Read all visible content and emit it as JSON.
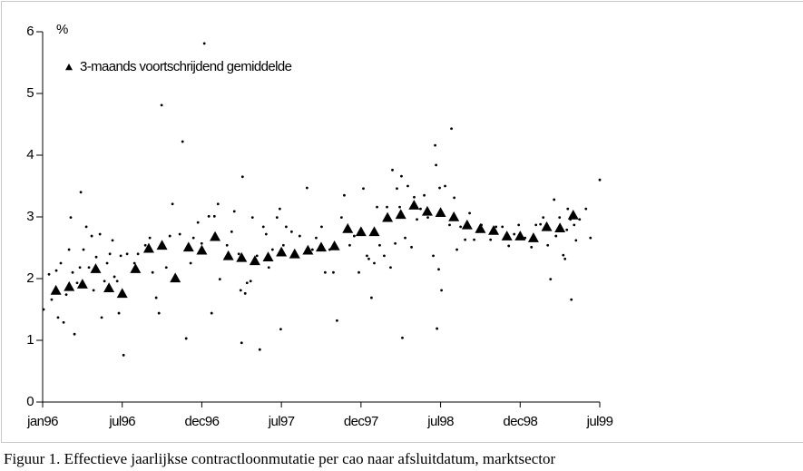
{
  "chart_data": {
    "type": "scatter",
    "y_label": "%",
    "caption": "Figuur 1. Effectieve jaarlijkse contractloonmutatie per cao naar afsluitdatum, marktsector",
    "xlim": [
      0,
      42
    ],
    "ylim": [
      0,
      6
    ],
    "xticks": [
      {
        "value": 0,
        "label": "jan96"
      },
      {
        "value": 6,
        "label": "jul96"
      },
      {
        "value": 12,
        "label": "dec96"
      },
      {
        "value": 18,
        "label": "jul97"
      },
      {
        "value": 24,
        "label": "dec97"
      },
      {
        "value": 30,
        "label": "jul98"
      },
      {
        "value": 36,
        "label": "dec98"
      },
      {
        "value": 42,
        "label": "jul99"
      }
    ],
    "yticks": [
      0,
      1,
      2,
      3,
      4,
      5,
      6
    ],
    "grid": false,
    "legend": "top-left",
    "series": [
      {
        "marker": "dot",
        "color": "#000000",
        "x": [
          0.07,
          0.48,
          0.68,
          1.03,
          1.16,
          1.37,
          1.58,
          1.78,
          1.99,
          2.12,
          2.26,
          2.4,
          2.6,
          2.81,
          2.88,
          3.08,
          3.29,
          3.49,
          3.7,
          3.84,
          4.04,
          4.32,
          4.45,
          4.66,
          4.86,
          5.07,
          5.27,
          5.41,
          5.62,
          5.75,
          5.89,
          6.1,
          6.37,
          6.92,
          7.19,
          7.74,
          8.08,
          8.29,
          8.56,
          8.77,
          8.97,
          9.32,
          9.59,
          9.79,
          10.34,
          10.55,
          10.82,
          11.16,
          11.37,
          11.71,
          11.99,
          12.19,
          12.53,
          12.74,
          12.95,
          13.22,
          13.36,
          13.9,
          14.25,
          14.45,
          14.79,
          14.93,
          15.0,
          15.07,
          15.27,
          15.41,
          15.68,
          15.82,
          16.16,
          16.37,
          16.64,
          16.85,
          17.05,
          17.33,
          17.67,
          17.88,
          17.95,
          18.15,
          18.36,
          18.77,
          19.38,
          19.93,
          20.34,
          20.62,
          21.03,
          21.3,
          21.64,
          21.92,
          22.19,
          22.53,
          22.74,
          23.15,
          23.49,
          23.84,
          24.18,
          24.45,
          24.59,
          24.79,
          25.0,
          25.21,
          25.41,
          25.75,
          25.96,
          26.23,
          26.37,
          26.58,
          26.71,
          26.92,
          27.05,
          27.12,
          27.33,
          27.53,
          27.81,
          28.01,
          28.22,
          28.49,
          28.77,
          29.04,
          29.45,
          29.59,
          29.66,
          29.73,
          29.86,
          29.93,
          30.07,
          30.34,
          30.68,
          30.82,
          31.03,
          31.23,
          31.51,
          31.85,
          32.19,
          32.53,
          32.81,
          33.08,
          33.77,
          34.18,
          34.66,
          35.14,
          35.55,
          35.89,
          36.37,
          36.85,
          37.19,
          37.53,
          37.74,
          38.08,
          38.29,
          38.56,
          38.7,
          38.97,
          39.25,
          39.38,
          39.52,
          39.59,
          39.79,
          39.86,
          40.07,
          40.21,
          40.48,
          40.96,
          41.3,
          42.0
        ],
        "values": [
          1.5,
          2.07,
          1.66,
          2.13,
          1.37,
          2.25,
          1.29,
          1.74,
          2.47,
          2.99,
          2.1,
          1.1,
          1.93,
          2.18,
          3.4,
          2.47,
          2.84,
          2.18,
          2.69,
          1.81,
          2.35,
          2.72,
          1.37,
          1.96,
          2.25,
          2.4,
          2.62,
          2.03,
          1.96,
          1.44,
          2.37,
          0.76,
          2.4,
          2.25,
          2.4,
          2.54,
          2.66,
          2.1,
          1.69,
          1.44,
          4.81,
          2.18,
          2.69,
          3.21,
          2.72,
          4.22,
          1.03,
          2.25,
          2.66,
          2.91,
          2.57,
          5.81,
          3.01,
          1.44,
          3.01,
          3.21,
          1.99,
          2.54,
          2.76,
          3.09,
          2.4,
          1.81,
          0.96,
          3.65,
          1.76,
          1.93,
          1.96,
          2.99,
          2.37,
          0.85,
          2.84,
          2.72,
          2.18,
          2.47,
          2.99,
          3.13,
          1.18,
          2.54,
          2.84,
          2.76,
          2.69,
          3.47,
          2.47,
          2.66,
          2.84,
          2.1,
          2.47,
          2.1,
          1.32,
          2.99,
          3.35,
          2.54,
          2.69,
          2.1,
          3.46,
          2.37,
          2.32,
          1.69,
          2.25,
          3.16,
          2.54,
          2.37,
          3.16,
          2.18,
          3.76,
          2.57,
          3.46,
          3.16,
          3.66,
          1.04,
          2.66,
          3.5,
          2.51,
          3.32,
          2.96,
          3.13,
          3.35,
          2.99,
          2.37,
          4.16,
          3.84,
          1.19,
          2.15,
          3.47,
          1.81,
          3.5,
          2.87,
          4.43,
          3.31,
          2.47,
          2.84,
          2.63,
          3.06,
          2.63,
          2.76,
          2.87,
          2.63,
          2.84,
          2.84,
          2.53,
          2.72,
          2.87,
          2.66,
          2.51,
          2.87,
          2.88,
          2.99,
          2.54,
          1.99,
          3.28,
          2.69,
          2.99,
          2.38,
          2.32,
          2.79,
          3.13,
          2.96,
          1.66,
          2.87,
          2.62,
          2.96,
          3.13,
          2.66,
          3.6
        ]
      },
      {
        "name": "3-maands voortschrijdend gemiddelde",
        "marker": "triangle",
        "color": "#000000",
        "x": [
          1,
          2,
          3,
          4,
          5,
          6,
          7,
          8,
          9,
          10,
          11,
          12,
          13,
          14,
          15,
          16,
          17,
          18,
          19,
          20,
          21,
          22,
          23,
          24,
          25,
          26,
          27,
          28,
          29,
          30,
          31,
          32,
          33,
          34,
          35,
          36,
          37,
          38,
          39,
          40
        ],
        "values": [
          1.81,
          1.87,
          1.91,
          2.16,
          1.85,
          1.76,
          2.16,
          2.49,
          2.54,
          2.01,
          2.51,
          2.46,
          2.68,
          2.37,
          2.34,
          2.29,
          2.35,
          2.43,
          2.4,
          2.46,
          2.51,
          2.53,
          2.81,
          2.76,
          2.76,
          2.99,
          3.04,
          3.19,
          3.09,
          3.07,
          3.0,
          2.87,
          2.81,
          2.78,
          2.69,
          2.69,
          2.66,
          2.84,
          2.82,
          3.03
        ]
      }
    ]
  }
}
